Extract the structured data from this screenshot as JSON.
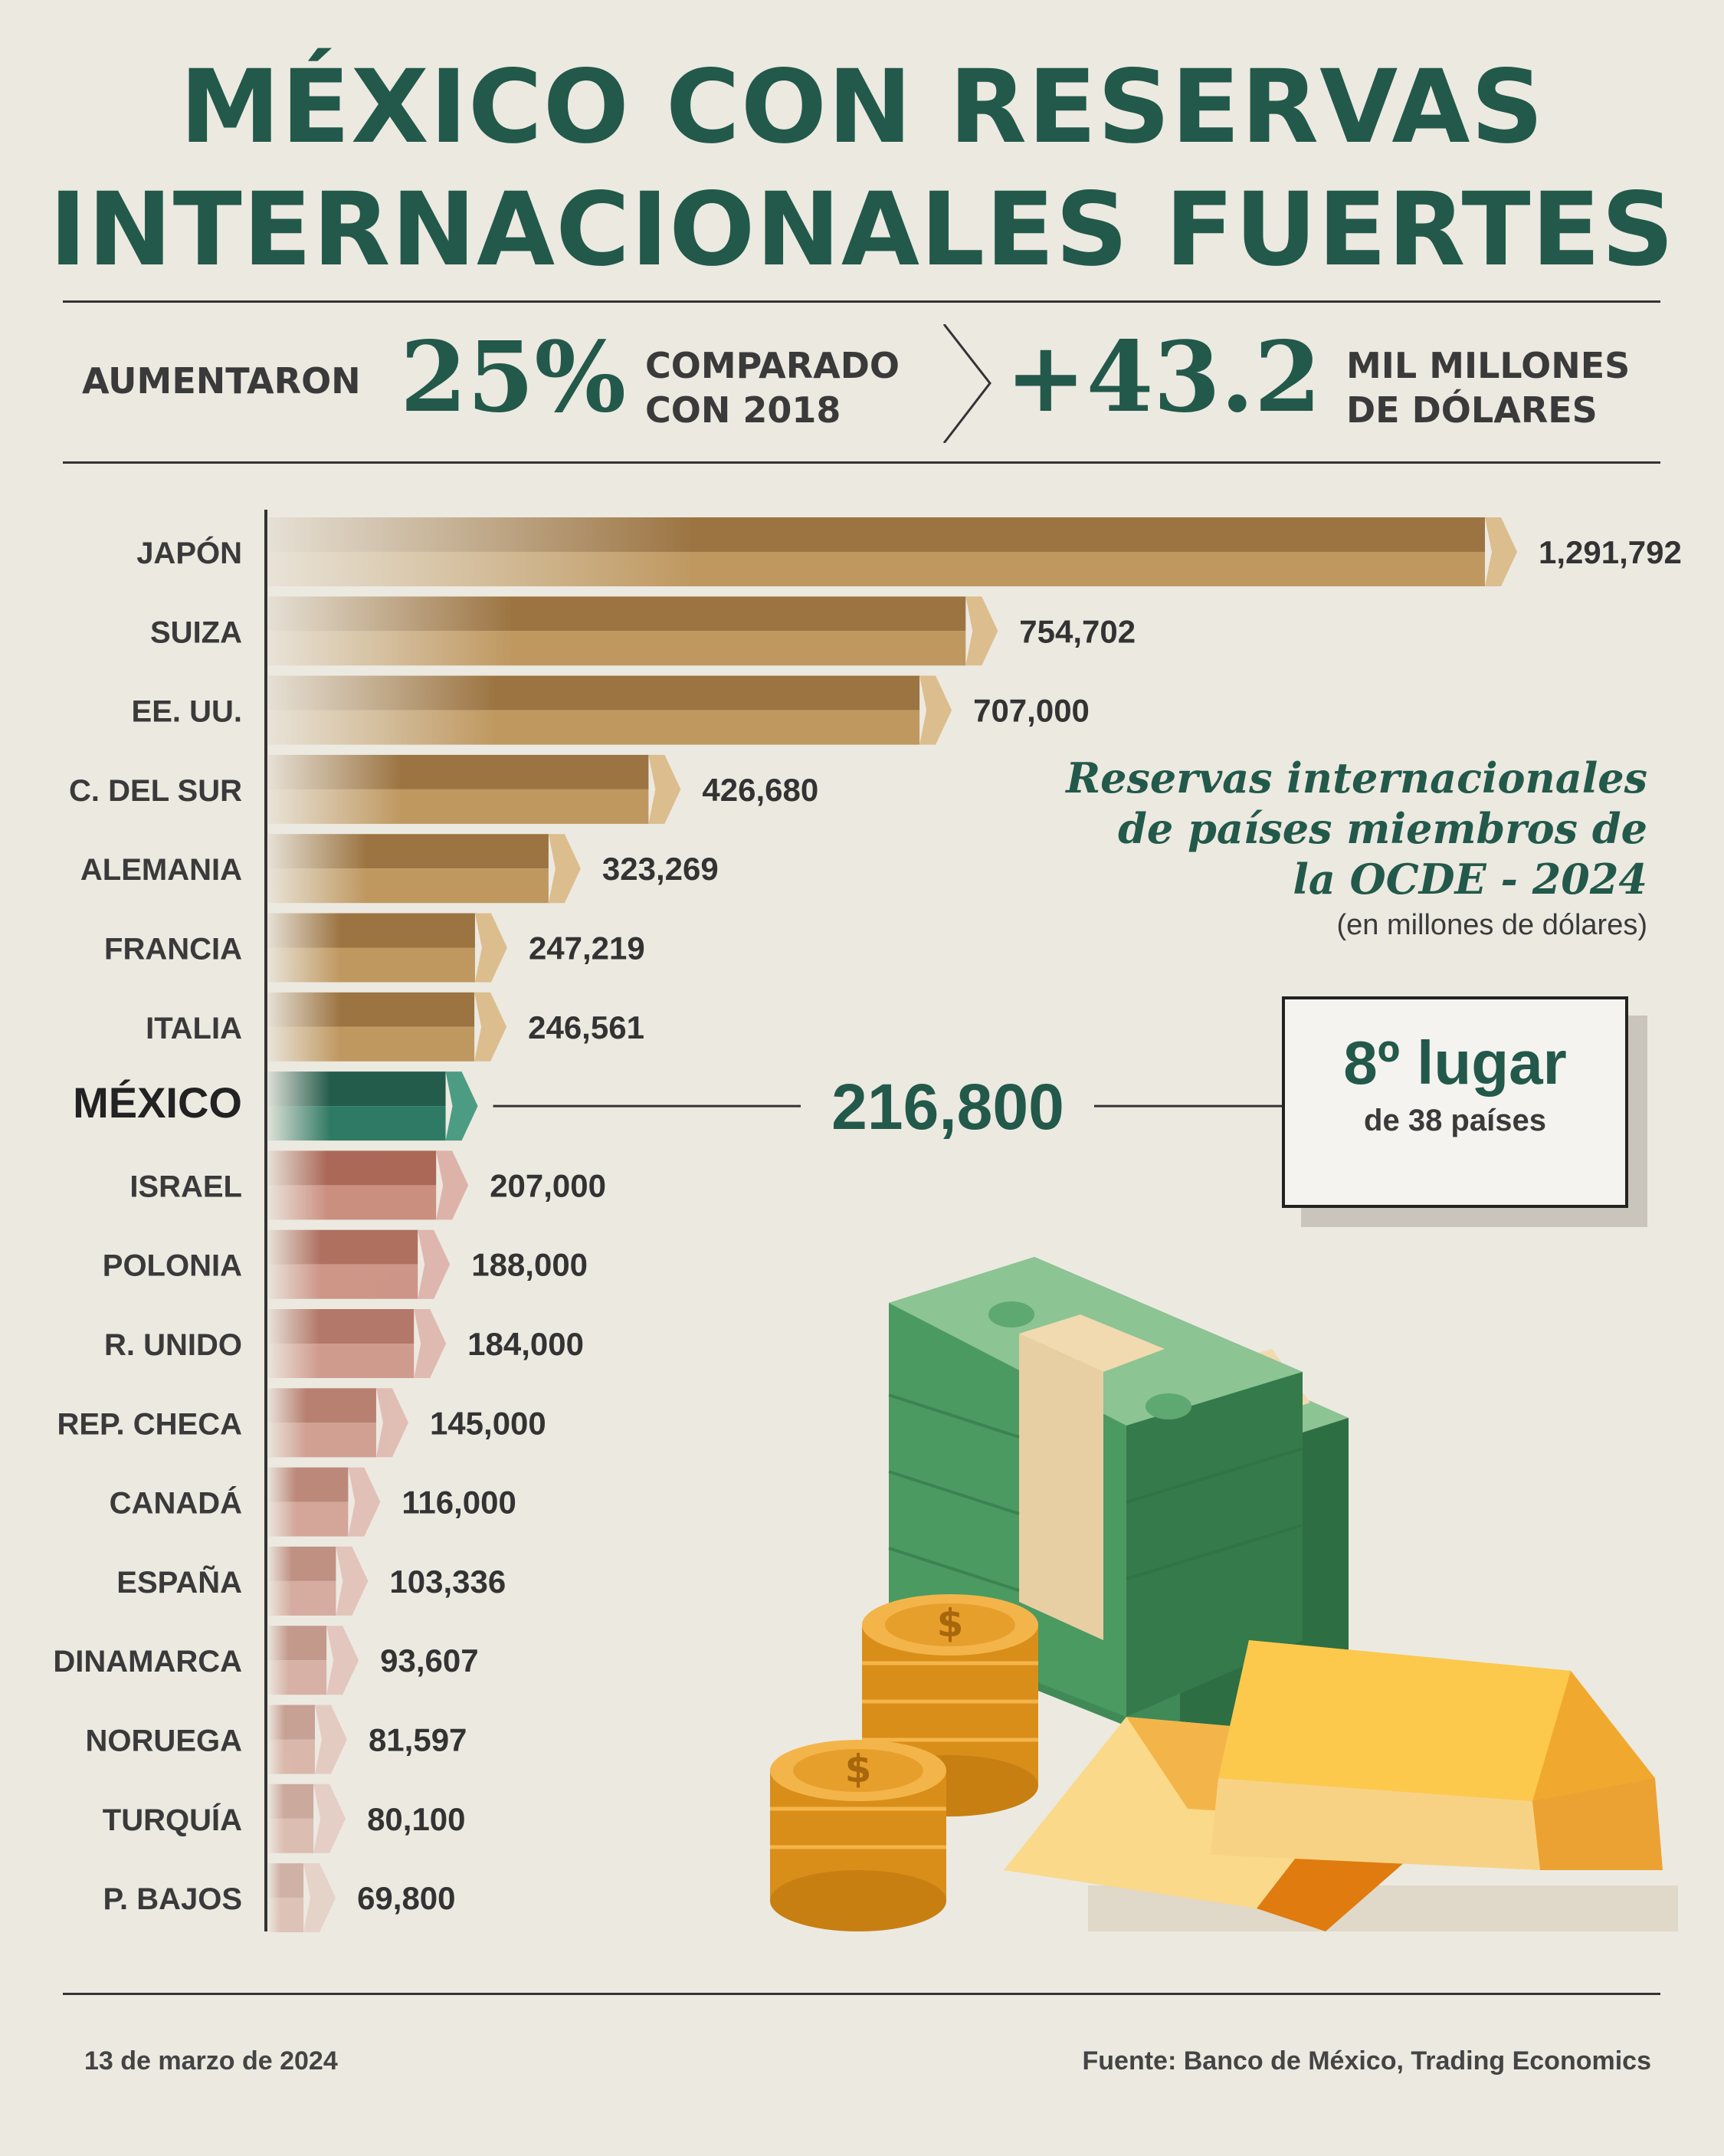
{
  "title": {
    "line1": "MÉXICO CON RESERVAS",
    "line2": "INTERNACIONALES FUERTES"
  },
  "stats": {
    "prefix": "AUMENTARON",
    "percent": "25%",
    "comparison_line1": "COMPARADO",
    "comparison_line2": "CON 2018",
    "amount": "+43.2",
    "unit_line1": "MIL MILLONES",
    "unit_line2": "DE DÓLARES"
  },
  "legend": {
    "title_line1": "Reservas internacionales",
    "title_line2": "de países miembros de",
    "title_line3": "la OCDE - 2024",
    "subtitle": "(en millones de dólares)"
  },
  "rank": {
    "main": "8º lugar",
    "sub": "de 38 países"
  },
  "footer": {
    "date": "13 de marzo de 2024",
    "source": "Fuente: Banco de México, Trading Economics"
  },
  "chart_data": {
    "type": "bar",
    "orientation": "horizontal",
    "title": "Reservas internacionales de países miembros de la OCDE - 2024",
    "unit": "(en millones de dólares)",
    "highlight": "MÉXICO",
    "categories": [
      "JAPÓN",
      "SUIZA",
      "EE. UU.",
      "C. DEL SUR",
      "ALEMANIA",
      "FRANCIA",
      "ITALIA",
      "MÉXICO",
      "ISRAEL",
      "POLONIA",
      "R. UNIDO",
      "REP. CHECA",
      "CANADÁ",
      "ESPAÑA",
      "DINAMARCA",
      "NORUEGA",
      "TURQUÍA",
      "P. BAJOS"
    ],
    "values": [
      1291792,
      754702,
      707000,
      426680,
      323269,
      247219,
      246561,
      216800,
      207000,
      188000,
      184000,
      145000,
      116000,
      103336,
      93607,
      81597,
      80100,
      69800
    ],
    "value_labels": [
      "1,291,792",
      "754,702",
      "707,000",
      "426,680",
      "323,269",
      "247,219",
      "246,561",
      "216,800",
      "207,000",
      "188,000",
      "184,000",
      "145,000",
      "116,000",
      "103,336",
      "93,607",
      "81,597",
      "80,100",
      "69,800"
    ],
    "colors": {
      "above": "#a07a45",
      "highlight": "#2a6e5b",
      "below": "#b5705f",
      "axis": "#333333"
    }
  }
}
